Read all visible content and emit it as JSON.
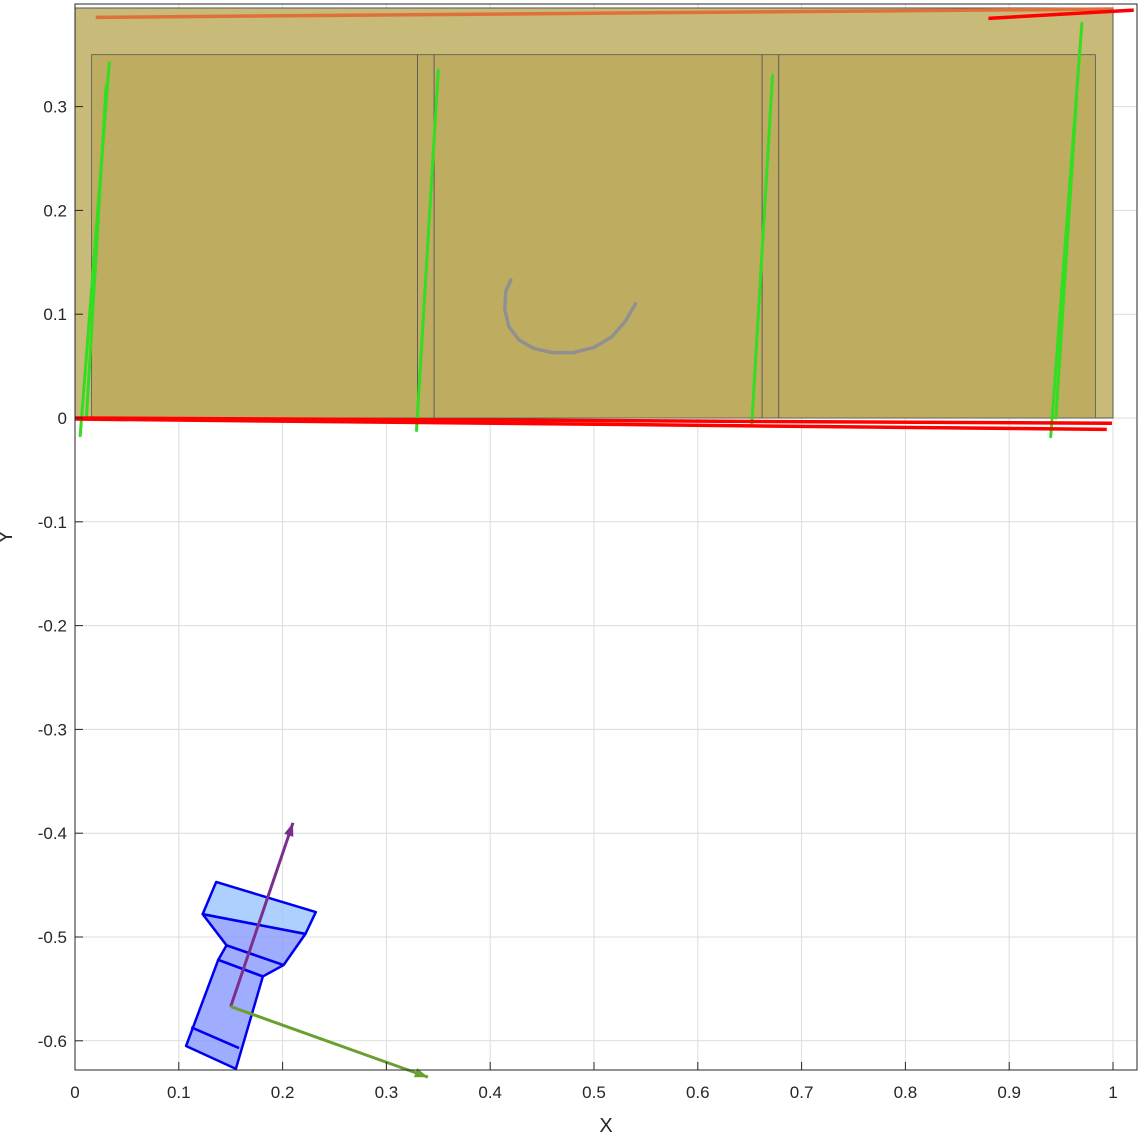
{
  "chart_data": {
    "type": "scatter",
    "title": "",
    "xlabel": "X",
    "ylabel": "Y",
    "xlim": [
      0,
      1.02
    ],
    "ylim": [
      -0.63,
      0.39
    ],
    "grid": true,
    "x_ticks": [
      "0",
      "0.1",
      "0.2",
      "0.3",
      "0.4",
      "0.5",
      "0.6",
      "0.7",
      "0.8",
      "0.9",
      "1"
    ],
    "y_ticks": [
      "-0.6",
      "-0.5",
      "-0.4",
      "-0.3",
      "-0.2",
      "-0.1",
      "0",
      "0.1",
      "0.2",
      "0.3"
    ],
    "colors": {
      "panel_outer": "#c8ba78",
      "panel_inner": "#bead60",
      "panel_edge": "#555555",
      "red_line": "#ff0000",
      "orange_line": "#e0703a",
      "green_line": "#33dd22",
      "gray_arc": "#909090",
      "camera_fill": "#8899ff",
      "camera_lens": "#99c4ff",
      "camera_edge": "#0000ee",
      "purple_arrow": "#7a2e8e",
      "olive_arrow": "#6aa030"
    },
    "panel": {
      "outer": {
        "x": [
          0,
          1.0
        ],
        "y": [
          0,
          0.395
        ]
      },
      "inner": [
        {
          "x": [
            0.016,
            0.33
          ],
          "y": [
            0,
            0.35
          ]
        },
        {
          "x": [
            0.33,
            0.346
          ],
          "y": [
            0,
            0.35
          ]
        },
        {
          "x": [
            0.346,
            0.662
          ],
          "y": [
            0,
            0.35
          ]
        },
        {
          "x": [
            0.662,
            0.678
          ],
          "y": [
            0,
            0.35
          ]
        },
        {
          "x": [
            0.678,
            0.983
          ],
          "y": [
            0,
            0.35
          ]
        }
      ]
    },
    "red_lines": [
      {
        "x": [
          0,
          0.999
        ],
        "y": [
          0.0,
          -0.005
        ]
      },
      {
        "x": [
          0,
          0.994
        ],
        "y": [
          -0.001,
          -0.011
        ]
      },
      {
        "x": [
          0.88,
          1.02
        ],
        "y": [
          0.385,
          0.393
        ]
      }
    ],
    "orange_lines": [
      {
        "x": [
          0.02,
          1.0
        ],
        "y": [
          0.386,
          0.394
        ]
      }
    ],
    "green_lines": [
      {
        "x": [
          0.005,
          0.033
        ],
        "y": [
          -0.017,
          0.342
        ]
      },
      {
        "x": [
          0.011,
          0.03
        ],
        "y": [
          0.0,
          0.32
        ]
      },
      {
        "x": [
          0.329,
          0.35
        ],
        "y": [
          -0.012,
          0.335
        ]
      },
      {
        "x": [
          0.652,
          0.672
        ],
        "y": [
          -0.006,
          0.33
        ]
      },
      {
        "x": [
          0.94,
          0.97
        ],
        "y": [
          -0.018,
          0.38
        ]
      },
      {
        "x": [
          0.945,
          0.965
        ],
        "y": [
          0.0,
          0.31
        ]
      }
    ],
    "gray_arc": {
      "x": [
        0.42,
        0.415,
        0.414,
        0.418,
        0.428,
        0.442,
        0.46,
        0.48,
        0.5,
        0.517,
        0.53,
        0.54
      ],
      "y": [
        0.133,
        0.122,
        0.105,
        0.088,
        0.075,
        0.067,
        0.063,
        0.063,
        0.068,
        0.078,
        0.093,
        0.11
      ]
    },
    "camera": {
      "body": {
        "x": [
          0.107,
          0.138,
          0.181,
          0.155
        ],
        "y": [
          -0.605,
          -0.522,
          -0.538,
          -0.627
        ]
      },
      "body_band": {
        "x": [
          0.112,
          0.158
        ],
        "y": [
          -0.587,
          -0.607
        ]
      },
      "neck": {
        "x": [
          0.138,
          0.146,
          0.201,
          0.181
        ],
        "y": [
          -0.522,
          -0.508,
          -0.527,
          -0.538
        ]
      },
      "lens_back": {
        "x": [
          0.146,
          0.201,
          0.222,
          0.123
        ],
        "y": [
          -0.508,
          -0.527,
          -0.497,
          -0.478
        ]
      },
      "lens_front": {
        "x": [
          0.123,
          0.136,
          0.232,
          0.222
        ],
        "y": [
          -0.478,
          -0.447,
          -0.476,
          -0.497
        ]
      }
    },
    "arrows": [
      {
        "from": [
          0.15,
          -0.567
        ],
        "to": [
          0.21,
          -0.39
        ],
        "color_key": "purple_arrow"
      },
      {
        "from": [
          0.15,
          -0.567
        ],
        "to": [
          0.34,
          -0.635
        ],
        "color_key": "olive_arrow"
      }
    ]
  }
}
